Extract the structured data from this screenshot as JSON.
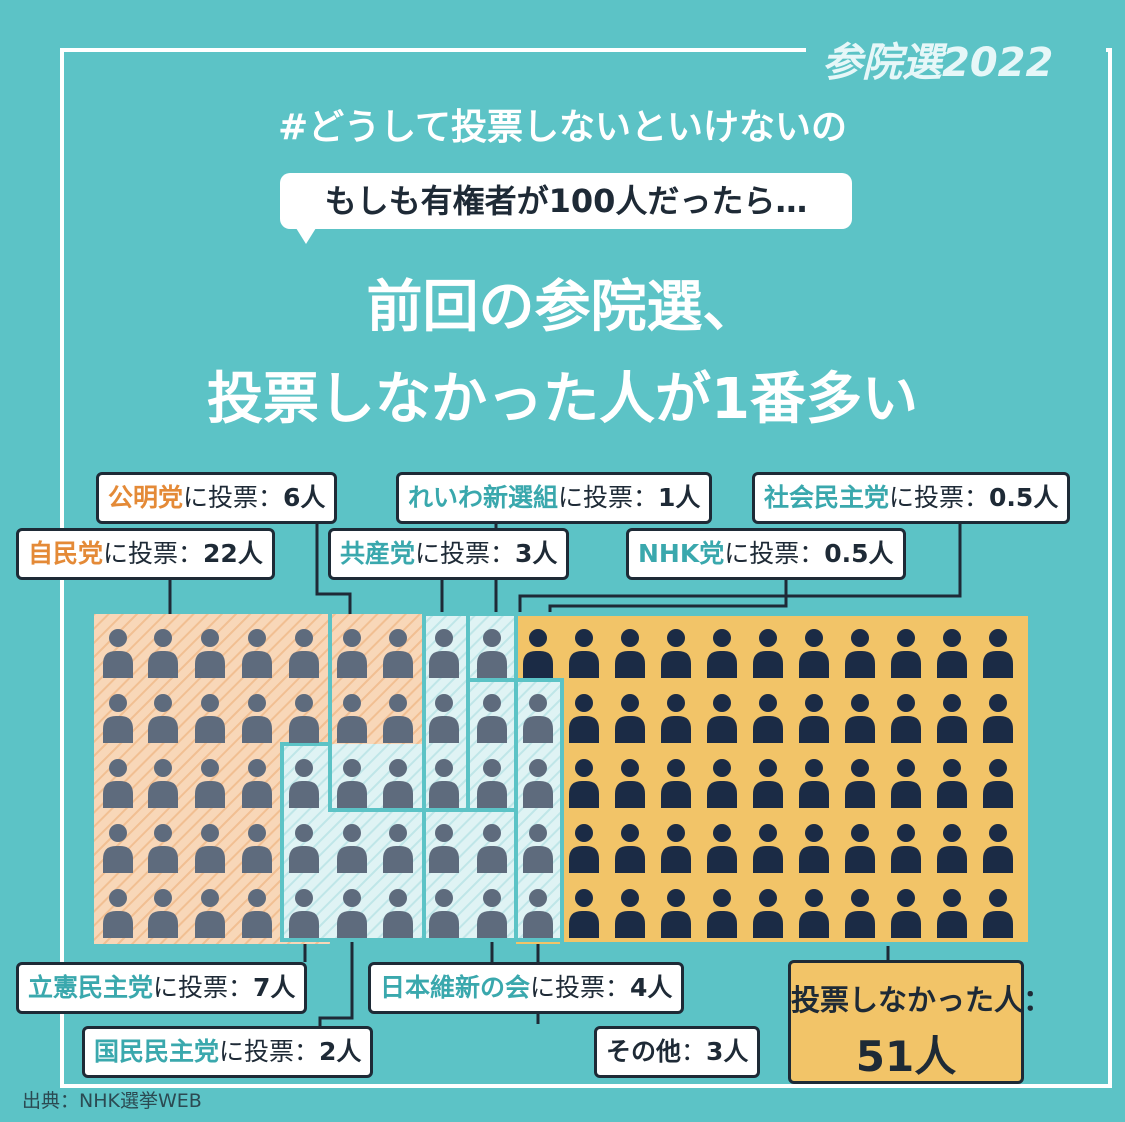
{
  "brand": "参院選2022",
  "hashtag": "#どうして投票しないといけないの",
  "bubble": "もしも有権者が100人だったら…",
  "headline": [
    "前回の参院選、",
    "投票しなかった人が1番多い"
  ],
  "source": "出典：NHK選挙WEB",
  "colors": {
    "background": "#5cc3c6",
    "dark": "#1e2a36",
    "ldp_orange": "#e48a37",
    "teal_text": "#3aa8ad",
    "nonvoter_fill": "#f2c468",
    "ldp_fill": "#f8d7b8",
    "party_fill": "#dff3f4",
    "icon_gray": "#5e6b7d",
    "icon_dark": "#1b2b45"
  },
  "chart_data": {
    "type": "waffle",
    "total": 100,
    "unit": "人",
    "series": [
      {
        "name": "自民党",
        "value": 22,
        "label_suffix": "に投票：",
        "count_text": "22人"
      },
      {
        "name": "公明党",
        "value": 6,
        "label_suffix": "に投票：",
        "count_text": "6人"
      },
      {
        "name": "立憲民主党",
        "value": 7,
        "label_suffix": "に投票：",
        "count_text": "7人"
      },
      {
        "name": "国民民主党",
        "value": 2,
        "label_suffix": "に投票：",
        "count_text": "2人"
      },
      {
        "name": "共産党",
        "value": 3,
        "label_suffix": "に投票：",
        "count_text": "3人"
      },
      {
        "name": "日本維新の会",
        "value": 4,
        "label_suffix": "に投票：",
        "count_text": "4人"
      },
      {
        "name": "れいわ新選組",
        "value": 1,
        "label_suffix": "に投票：",
        "count_text": "1人"
      },
      {
        "name": "その他",
        "value": 3,
        "label_suffix": "：",
        "count_text": "3人"
      },
      {
        "name": "社会民主党",
        "value": 0.5,
        "label_suffix": "に投票：",
        "count_text": "0.5人"
      },
      {
        "name": "NHK党",
        "value": 0.5,
        "label_suffix": "に投票：",
        "count_text": "0.5人"
      },
      {
        "name": "投票しなかった人",
        "value": 51,
        "label_suffix": "：",
        "count_text": "51人"
      }
    ]
  }
}
